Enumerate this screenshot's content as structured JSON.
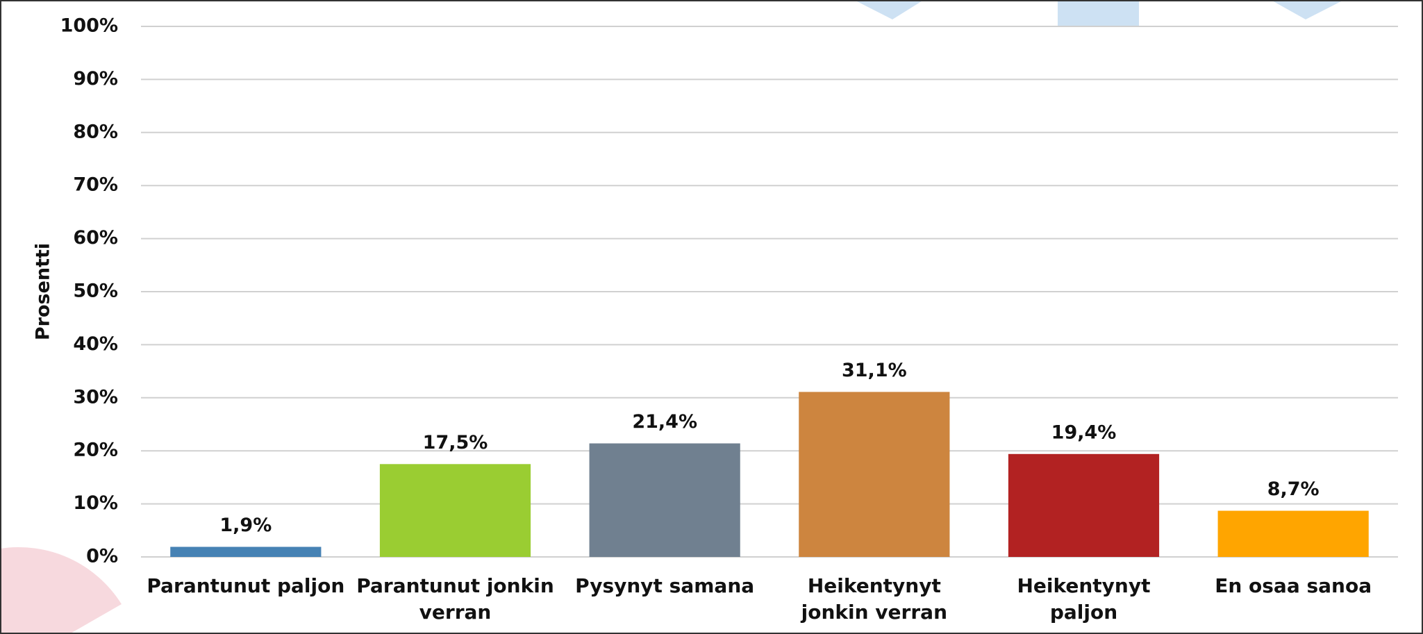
{
  "chart_data": {
    "type": "bar",
    "y_label": "Prosentti",
    "categories": [
      "Parantunut paljon",
      "Parantunut jonkin verran",
      "Pysynyt samana",
      "Heikentynyt jonkin verran",
      "Heikentynyt paljon",
      "En osaa sanoa"
    ],
    "values": [
      1.9,
      17.5,
      21.4,
      31.1,
      19.4,
      8.7
    ],
    "value_labels": [
      "1,9%",
      "17,5%",
      "21,4%",
      "31,1%",
      "19,4%",
      "8,7%"
    ],
    "colors": [
      "#4682b4",
      "#9acd32",
      "#708090",
      "#cd853f",
      "#b22222",
      "#ffa500"
    ],
    "ylim": [
      0,
      100
    ],
    "yticks": [
      {
        "value": 0,
        "label": "0%"
      },
      {
        "value": 10,
        "label": "10%"
      },
      {
        "value": 20,
        "label": "20%"
      },
      {
        "value": 30,
        "label": "30%"
      },
      {
        "value": 40,
        "label": "40%"
      },
      {
        "value": 50,
        "label": "50%"
      },
      {
        "value": 60,
        "label": "60%"
      },
      {
        "value": 70,
        "label": "70%"
      },
      {
        "value": 80,
        "label": "80%"
      },
      {
        "value": 90,
        "label": "90%"
      },
      {
        "value": 100,
        "label": "100%"
      }
    ],
    "grid": true
  }
}
